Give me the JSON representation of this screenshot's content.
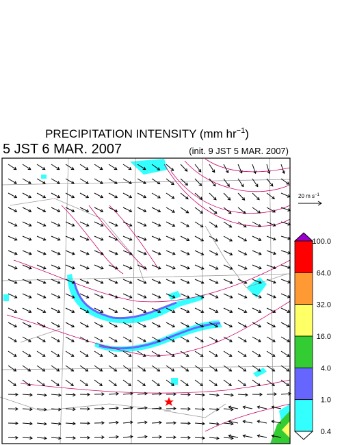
{
  "header": {
    "title": "PRECIPITATION INTENSITY (mm hr",
    "title_exponent": "−1",
    "title_end": ")",
    "valid_time": "5 JST 6 MAR. 2007",
    "init_time": "(init. 9 JST 5 MAR. 2007)"
  },
  "wind_scale": {
    "label": "20 m s",
    "exponent": "−1"
  },
  "colorbar": {
    "labels": [
      "100.0",
      "64.0",
      "32.0",
      "16.0",
      "4.0",
      "1.0",
      "0.4"
    ],
    "colors": [
      "#ff0000",
      "#ff9933",
      "#ffff66",
      "#33cc33",
      "#6666ff",
      "#33ffff"
    ],
    "over_color": "#9900cc",
    "under_color": "#ffffff"
  }
}
